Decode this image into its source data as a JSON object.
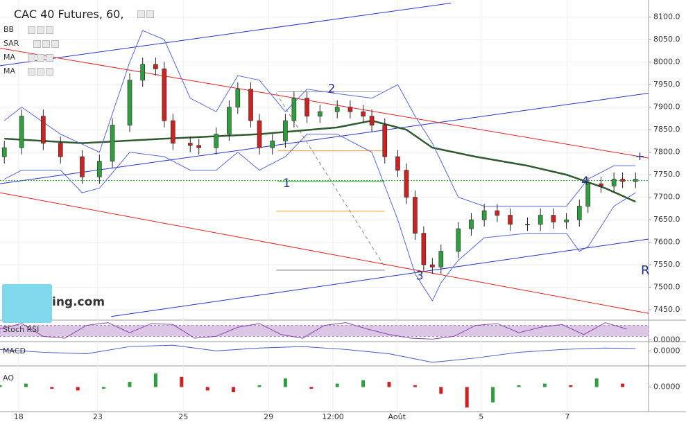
{
  "header": {
    "title": "CAC 40 Futures, 60,",
    "indicators": [
      "BB",
      "SAR",
      "MA",
      "MA"
    ],
    "logo": "ing.com",
    "corner_mark": "R"
  },
  "chart_data": [
    {
      "type": "candlestick",
      "x": [
        1,
        5,
        10,
        14,
        19,
        23,
        26,
        30,
        33,
        36,
        38,
        40,
        44,
        46,
        50,
        53,
        55,
        58,
        60,
        63,
        66,
        68,
        71,
        74,
        78,
        81,
        84,
        86,
        89,
        92,
        94,
        96,
        98,
        100,
        102,
        106,
        109,
        112,
        115,
        118,
        122,
        125,
        128,
        131,
        134,
        136,
        139,
        142,
        144,
        147
      ],
      "open": [
        7790,
        7810,
        7880,
        7820,
        7790,
        7745,
        7780,
        7860,
        7960,
        7995,
        7985,
        7870,
        7820,
        7815,
        7810,
        7840,
        7900,
        7940,
        7870,
        7810,
        7825,
        7870,
        7920,
        7880,
        7890,
        7900,
        7890,
        7880,
        7860,
        7790,
        7760,
        7700,
        7620,
        7550,
        7545,
        7580,
        7630,
        7650,
        7670,
        7660,
        7640,
        7640,
        7660,
        7645,
        7650,
        7680,
        7730,
        7725,
        7740,
        7735
      ],
      "high": [
        7825,
        7895,
        7895,
        7835,
        7805,
        7795,
        7875,
        7975,
        8010,
        8010,
        8000,
        7885,
        7835,
        7830,
        7855,
        7915,
        7955,
        7955,
        7885,
        7840,
        7885,
        7935,
        7935,
        7905,
        7915,
        7915,
        7905,
        7895,
        7875,
        7805,
        7775,
        7715,
        7635,
        7565,
        7595,
        7645,
        7665,
        7685,
        7685,
        7675,
        7655,
        7675,
        7675,
        7665,
        7695,
        7745,
        7745,
        7755,
        7755,
        7755
      ],
      "low": [
        7775,
        7795,
        7805,
        7775,
        7730,
        7730,
        7765,
        7845,
        7945,
        7970,
        7855,
        7805,
        7800,
        7795,
        7795,
        7825,
        7885,
        7855,
        7795,
        7795,
        7810,
        7855,
        7865,
        7865,
        7875,
        7875,
        7865,
        7845,
        7775,
        7745,
        7685,
        7605,
        7535,
        7530,
        7530,
        7565,
        7615,
        7635,
        7645,
        7625,
        7625,
        7625,
        7630,
        7630,
        7635,
        7665,
        7710,
        7710,
        7720,
        7720
      ],
      "close": [
        7810,
        7880,
        7820,
        7790,
        7745,
        7780,
        7860,
        7960,
        7995,
        7985,
        7870,
        7820,
        7815,
        7810,
        7840,
        7900,
        7940,
        7870,
        7810,
        7825,
        7870,
        7920,
        7880,
        7890,
        7900,
        7890,
        7880,
        7860,
        7790,
        7760,
        7700,
        7620,
        7550,
        7545,
        7580,
        7630,
        7650,
        7670,
        7660,
        7640,
        7640,
        7660,
        7645,
        7650,
        7680,
        7730,
        7725,
        7740,
        7735,
        7740
      ],
      "up_color": "#2e9e3e",
      "down_color": "#cc2222",
      "xlim": [
        0,
        150
      ],
      "ylim": [
        7427,
        8138
      ],
      "xticks": [
        {
          "value": 4.3,
          "label": "18"
        },
        {
          "value": 22.6,
          "label": "23"
        },
        {
          "value": 42.4,
          "label": "25"
        },
        {
          "value": 62.1,
          "label": "29"
        },
        {
          "value": 77,
          "label": "12:00"
        },
        {
          "value": 91.8,
          "label": "Août"
        },
        {
          "value": 111.3,
          "label": "5"
        },
        {
          "value": 131.2,
          "label": "7"
        }
      ],
      "yticks": [
        {
          "value": 8100,
          "label": "8100.0"
        },
        {
          "value": 8050,
          "label": "8050.0"
        },
        {
          "value": 8000,
          "label": "8000.0"
        },
        {
          "value": 7950,
          "label": "7950.0"
        },
        {
          "value": 7900,
          "label": "7900.0"
        },
        {
          "value": 7850,
          "label": "7850.0"
        },
        {
          "value": 7800,
          "label": "7800.0"
        },
        {
          "value": 7750,
          "label": "7750.0"
        },
        {
          "value": 7700,
          "label": "7700.0"
        },
        {
          "value": 7650,
          "label": "7650.0"
        },
        {
          "value": 7600,
          "label": "7600.0"
        },
        {
          "value": 7550,
          "label": "7550.0"
        },
        {
          "value": 7500,
          "label": "7500.0"
        },
        {
          "value": 7450,
          "label": "7450.0"
        }
      ],
      "grid": true,
      "price_line": 7737,
      "price_line_color": "#22aa22",
      "overlays": [
        {
          "color": "#2f5a2f",
          "width": 2.5,
          "x": [
            1,
            19,
            38,
            60,
            78,
            86,
            94,
            100,
            110,
            122,
            131,
            140,
            147
          ],
          "values": [
            7830,
            7820,
            7830,
            7840,
            7855,
            7870,
            7850,
            7810,
            7790,
            7770,
            7750,
            7720,
            7690
          ]
        },
        {
          "color": "#5566dd",
          "width": 1,
          "x": [
            1,
            5,
            14,
            23,
            30,
            33,
            38,
            44,
            50,
            55,
            60,
            66,
            71,
            78,
            86,
            92,
            96,
            100,
            106,
            112,
            122,
            131,
            136,
            142,
            147
          ],
          "values": [
            7870,
            7900,
            7840,
            7800,
            8000,
            8070,
            8050,
            7920,
            7890,
            7970,
            7960,
            7890,
            7940,
            7930,
            7920,
            7950,
            7880,
            7820,
            7700,
            7680,
            7680,
            7680,
            7740,
            7770,
            7770
          ]
        },
        {
          "color": "#5566dd",
          "width": 1,
          "x": [
            1,
            5,
            14,
            19,
            23,
            30,
            38,
            44,
            50,
            55,
            60,
            66,
            71,
            78,
            86,
            92,
            96,
            100,
            102,
            106,
            112,
            122,
            131,
            134,
            136,
            142,
            147
          ],
          "values": [
            7740,
            7760,
            7760,
            7710,
            7720,
            7800,
            7790,
            7760,
            7760,
            7800,
            7760,
            7790,
            7840,
            7840,
            7800,
            7650,
            7530,
            7470,
            7510,
            7560,
            7610,
            7620,
            7620,
            7580,
            7590,
            7680,
            7710
          ]
        }
      ],
      "drawings": [
        {
          "color": "#2233cc",
          "x": [
            0,
            104.3
          ],
          "values": [
            7992,
            8131
          ]
        },
        {
          "color": "#2233cc",
          "x": [
            0,
            150
          ],
          "values": [
            7730,
            7931
          ]
        },
        {
          "color": "#2233cc",
          "x": [
            25.7,
            150
          ],
          "values": [
            7435,
            7607
          ]
        },
        {
          "color": "#dd2222",
          "x": [
            0,
            150
          ],
          "values": [
            8031,
            7787
          ]
        },
        {
          "color": "#dd2222",
          "x": [
            0,
            150
          ],
          "values": [
            7710,
            7442
          ]
        },
        {
          "color": "#888888",
          "dashed": true,
          "x": [
            63.9,
            89
          ],
          "values": [
            7931,
            7545
          ]
        },
        {
          "color": "#999999",
          "x": [
            64.2,
            88.2
          ],
          "values": [
            7934,
            7934
          ]
        },
        {
          "color": "#ee9922",
          "x": [
            64.2,
            89
          ],
          "values": [
            7803,
            7803
          ]
        },
        {
          "color": "#22aa22",
          "x": [
            64.2,
            89
          ],
          "values": [
            7735,
            7735
          ]
        },
        {
          "color": "#ee9922",
          "x": [
            63.9,
            89
          ],
          "values": [
            7669,
            7669
          ]
        },
        {
          "color": "#777777",
          "x": [
            63.9,
            89
          ],
          "values": [
            7538,
            7538
          ]
        }
      ],
      "annotations": [
        {
          "text": "1",
          "x": 66.3,
          "y": 7730
        },
        {
          "text": "2",
          "x": 76.7,
          "y": 7940
        },
        {
          "text": "3",
          "x": 97.1,
          "y": 7525
        },
        {
          "text": "4",
          "x": 135.3,
          "y": 7735
        },
        {
          "text": "+",
          "x": 148,
          "y": 7790
        }
      ]
    },
    {
      "type": "line",
      "label": "Stoch RSI",
      "color": "#8844aa",
      "band": [
        20,
        80
      ],
      "band_color": "#dcc6e6",
      "x": [
        0,
        5,
        10,
        15,
        20,
        25,
        30,
        35,
        40,
        45,
        50,
        55,
        60,
        65,
        70,
        75,
        80,
        85,
        90,
        95,
        100,
        105,
        110,
        115,
        120,
        125,
        130,
        135,
        140,
        145
      ],
      "values": [
        60,
        90,
        20,
        10,
        80,
        95,
        40,
        90,
        85,
        10,
        20,
        70,
        90,
        30,
        10,
        80,
        95,
        60,
        30,
        10,
        5,
        20,
        80,
        90,
        40,
        70,
        85,
        30,
        95,
        60
      ],
      "ylim": [
        -5,
        105
      ],
      "yticks": [
        {
          "value": 0,
          "label": "0.0000"
        }
      ]
    },
    {
      "type": "line",
      "label": "MACD",
      "color": "#4455cc",
      "x": [
        0,
        10,
        20,
        30,
        40,
        50,
        60,
        70,
        80,
        90,
        100,
        110,
        120,
        130,
        140,
        147
      ],
      "values": [
        5,
        -5,
        -10,
        15,
        20,
        0,
        10,
        15,
        5,
        -10,
        -40,
        -25,
        -5,
        5,
        10,
        8
      ],
      "ylim": [
        -50,
        30
      ],
      "yticks": [
        {
          "value": 0,
          "label": "0.0000"
        }
      ]
    },
    {
      "type": "bar",
      "label": "AO",
      "up_color": "#2e9e3e",
      "down_color": "#cc2222",
      "x": [
        0,
        6,
        12,
        18,
        24,
        30,
        36,
        42,
        48,
        54,
        60,
        66,
        72,
        78,
        84,
        90,
        96,
        102,
        108,
        114,
        120,
        126,
        132,
        138,
        144
      ],
      "values": [
        5,
        10,
        -5,
        -10,
        -5,
        15,
        40,
        30,
        -10,
        -15,
        5,
        25,
        -5,
        10,
        20,
        15,
        5,
        -20,
        -60,
        -45,
        5,
        10,
        5,
        25,
        10
      ],
      "ylim": [
        -70,
        60
      ],
      "yticks": [
        {
          "value": 0,
          "label": "0.0000"
        }
      ]
    }
  ]
}
